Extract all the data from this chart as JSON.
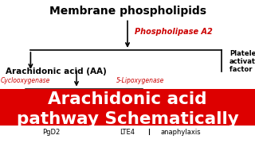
{
  "bg_color": "#ffffff",
  "red_color": "#cc0000",
  "black_color": "#000000",
  "title": "Membrane phospholipids",
  "phospholipase": "Phospholipase A2",
  "aa_label": "Arachidonic acid (AA)",
  "paf_label": "Platelet\nactivating\nfactor (PAF)",
  "cyclo_label": "Cyclooxygenase",
  "lipox_label": "5-Lipoxygenase",
  "banner_line1": "Arachidonic acid",
  "banner_line2": "pathway Schematically",
  "banner_bg": "#dd0000",
  "banner_text_color": "#ffffff",
  "pgd2_label": "PgD2",
  "lte4_label": "LTE4",
  "anaphylaxis_label": "anaphylaxis",
  "fig_w": 3.2,
  "fig_h": 1.8,
  "dpi": 100
}
